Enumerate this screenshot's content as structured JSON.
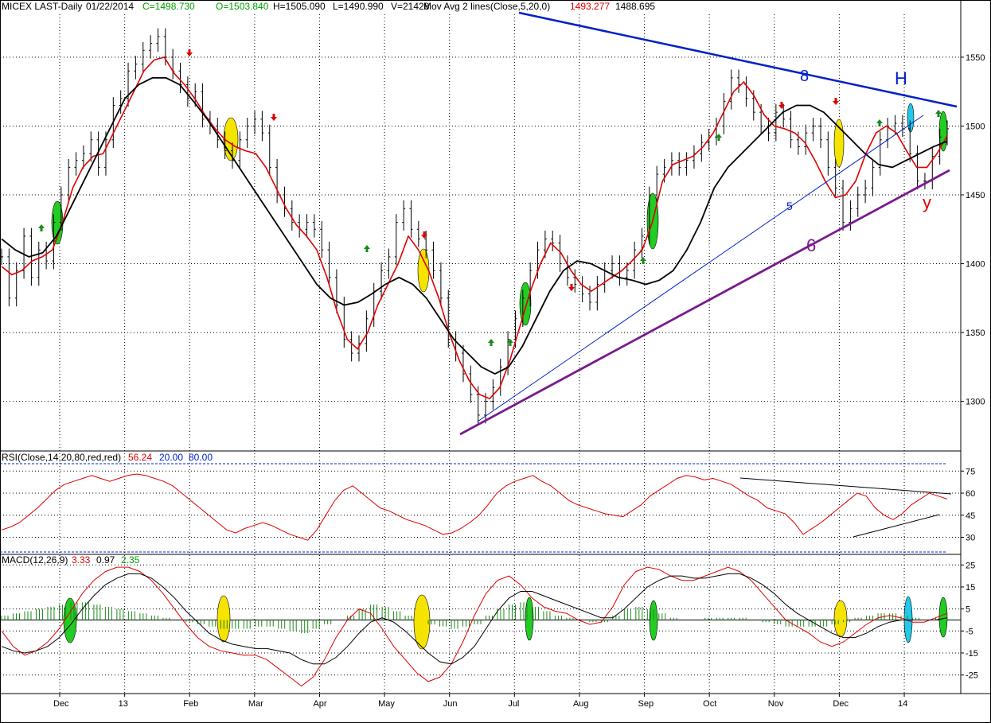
{
  "header": {
    "symbol": "MICEX LAST-Daily",
    "date": "01/22/2014",
    "close": "C=1498.730",
    "open": "O=1503.840",
    "high": "H=1505.090",
    "low": "L=1490.990",
    "volume": "V=21428",
    "ma_label": "Mov Avg 2 lines(Close,5,20,0)",
    "ma_fast": "1493.277",
    "ma_slow": "1488.695"
  },
  "rsi_header": {
    "label": "RSI(Close,14,20,80,red,red)",
    "value": "56.24",
    "low": "20.00",
    "high": "80.00"
  },
  "macd_header": {
    "label": "MACD(12,26,9)",
    "macd": "3.33",
    "signal": "0.97",
    "hist": "2.35"
  },
  "colors": {
    "fast_ma": "#e00000",
    "slow_ma": "#000000",
    "trend_top": "#0020c8",
    "trend_bottom": "#7a1a8c",
    "trend_mid": "#0020c8",
    "rsi": "#e00000",
    "macd_hist": "#1a8a1a",
    "up_arrow": "#1a8a1a",
    "down_arrow": "#e00000",
    "highlight_yellow": "#f5e400",
    "highlight_green": "#22cc22",
    "highlight_cyan": "#22c8e8"
  },
  "annotations": {
    "top_line": "8",
    "mid_line": "5",
    "bottom_line": "6",
    "h": "H",
    "y": "y"
  },
  "chart_data": [
    {
      "type": "line",
      "panel": "price",
      "x_labels": [
        "Dec",
        "13",
        "Feb",
        "Mar",
        "Apr",
        "May",
        "Jun",
        "Jul",
        "Aug",
        "Sep",
        "Oct",
        "Nov",
        "Dec",
        "14"
      ],
      "y_ticks": [
        1300,
        1350,
        1400,
        1450,
        1500,
        1550
      ],
      "ylim": [
        1268,
        1580
      ],
      "series": [
        {
          "name": "Close",
          "values": [
            1405,
            1375,
            1395,
            1420,
            1390,
            1410,
            1402,
            1430,
            1450,
            1470,
            1475,
            1480,
            1490,
            1470,
            1490,
            1515,
            1520,
            1540,
            1545,
            1555,
            1560,
            1565,
            1550,
            1540,
            1530,
            1520,
            1525,
            1505,
            1500,
            1490,
            1482,
            1475,
            1490,
            1500,
            1505,
            1495,
            1470,
            1450,
            1440,
            1430,
            1425,
            1430,
            1425,
            1410,
            1390,
            1370,
            1345,
            1335,
            1342,
            1360,
            1380,
            1395,
            1405,
            1430,
            1440,
            1425,
            1418,
            1410,
            1395,
            1375,
            1345,
            1335,
            1320,
            1305,
            1290,
            1300,
            1310,
            1325,
            1345,
            1360,
            1375,
            1395,
            1410,
            1418,
            1415,
            1400,
            1390,
            1385,
            1378,
            1372,
            1385,
            1395,
            1400,
            1390,
            1395,
            1410,
            1420,
            1450,
            1465,
            1470,
            1475,
            1470,
            1475,
            1480,
            1488,
            1492,
            1500,
            1518,
            1535,
            1530,
            1520,
            1510,
            1500,
            1495,
            1510,
            1505,
            1490,
            1485,
            1495,
            1500,
            1490,
            1470,
            1455,
            1430,
            1440,
            1450,
            1455,
            1470,
            1490,
            1500,
            1502,
            1498,
            1480,
            1460,
            1460,
            1478,
            1492,
            1498
          ]
        },
        {
          "name": "MA5",
          "values": [
            1398,
            1392,
            1395,
            1402,
            1405,
            1410,
            1430,
            1455,
            1470,
            1478,
            1480,
            1495,
            1510,
            1525,
            1540,
            1548,
            1550,
            1538,
            1530,
            1520,
            1508,
            1498,
            1490,
            1485,
            1482,
            1480,
            1470,
            1455,
            1440,
            1428,
            1420,
            1410,
            1390,
            1365,
            1345,
            1338,
            1350,
            1370,
            1385,
            1400,
            1420,
            1410,
            1395,
            1375,
            1350,
            1330,
            1315,
            1305,
            1302,
            1310,
            1330,
            1355,
            1380,
            1400,
            1415,
            1408,
            1395,
            1385,
            1380,
            1385,
            1390,
            1395,
            1402,
            1410,
            1430,
            1460,
            1472,
            1475,
            1478,
            1485,
            1495,
            1510,
            1525,
            1532,
            1522,
            1508,
            1500,
            1498,
            1495,
            1488,
            1475,
            1460,
            1448,
            1450,
            1460,
            1480,
            1495,
            1500,
            1495,
            1482,
            1470,
            1470,
            1480,
            1493
          ]
        },
        {
          "name": "MA20",
          "values": [
            1418,
            1410,
            1405,
            1408,
            1420,
            1440,
            1460,
            1480,
            1500,
            1520,
            1530,
            1535,
            1535,
            1530,
            1518,
            1505,
            1490,
            1475,
            1460,
            1445,
            1430,
            1415,
            1400,
            1385,
            1375,
            1370,
            1372,
            1378,
            1385,
            1390,
            1385,
            1375,
            1360,
            1345,
            1335,
            1325,
            1320,
            1325,
            1340,
            1360,
            1380,
            1395,
            1402,
            1400,
            1395,
            1390,
            1388,
            1385,
            1388,
            1395,
            1410,
            1430,
            1455,
            1470,
            1480,
            1490,
            1500,
            1510,
            1515,
            1515,
            1510,
            1500,
            1490,
            1480,
            1472,
            1470,
            1475,
            1480,
            1485,
            1489
          ]
        }
      ]
    },
    {
      "type": "line",
      "panel": "rsi",
      "y_ticks": [
        30,
        45,
        60,
        75
      ],
      "ylim": [
        20,
        80
      ],
      "series": [
        {
          "name": "RSI",
          "values": [
            35,
            37,
            40,
            45,
            50,
            56,
            62,
            66,
            68,
            70,
            72,
            70,
            68,
            70,
            72,
            73,
            72,
            70,
            68,
            65,
            60,
            55,
            50,
            45,
            40,
            35,
            33,
            36,
            38,
            40,
            38,
            35,
            32,
            30,
            28,
            35,
            45,
            55,
            62,
            65,
            60,
            55,
            50,
            48,
            45,
            42,
            40,
            38,
            35,
            32,
            33,
            36,
            40,
            45,
            52,
            60,
            65,
            68,
            70,
            72,
            68,
            65,
            60,
            55,
            52,
            50,
            48,
            46,
            45,
            44,
            48,
            52,
            58,
            62,
            66,
            70,
            72,
            71,
            69,
            70,
            68,
            66,
            62,
            58,
            55,
            50,
            48,
            46,
            40,
            32,
            36,
            40,
            45,
            50,
            55,
            60,
            58,
            50,
            45,
            42,
            46,
            52,
            56,
            60,
            58,
            56
          ]
        }
      ]
    },
    {
      "type": "line",
      "panel": "macd",
      "y_ticks": [
        -25,
        -15,
        -5,
        5,
        15,
        25
      ],
      "ylim": [
        -32,
        28
      ],
      "series": [
        {
          "name": "MACD",
          "values": [
            -5,
            -12,
            -16,
            -14,
            -10,
            -4,
            4,
            12,
            18,
            22,
            24,
            24,
            22,
            18,
            12,
            5,
            -2,
            -8,
            -12,
            -14,
            -15,
            -16,
            -16,
            -18,
            -22,
            -26,
            -30,
            -26,
            -18,
            -8,
            0,
            5,
            3,
            -4,
            -12,
            -18,
            -24,
            -28,
            -26,
            -20,
            -10,
            2,
            12,
            18,
            20,
            16,
            10,
            6,
            4,
            3,
            0,
            -2,
            -1,
            6,
            16,
            22,
            24,
            23,
            20,
            18,
            18,
            20,
            22,
            24,
            22,
            18,
            12,
            6,
            0,
            -3,
            -6,
            -10,
            -12,
            -10,
            -6,
            -2,
            1,
            2,
            1,
            -1,
            -1,
            1,
            3
          ]
        },
        {
          "name": "Signal",
          "values": [
            -12,
            -14,
            -15,
            -14,
            -12,
            -8,
            -2,
            5,
            11,
            16,
            19,
            21,
            21,
            19,
            15,
            10,
            4,
            -1,
            -6,
            -9,
            -11,
            -12,
            -13,
            -13,
            -14,
            -15,
            -18,
            -20,
            -20,
            -17,
            -12,
            -6,
            -1,
            1,
            -1,
            -5,
            -10,
            -15,
            -19,
            -20,
            -17,
            -12,
            -4,
            4,
            10,
            13,
            13,
            11,
            9,
            7,
            5,
            3,
            1,
            1,
            5,
            10,
            15,
            18,
            20,
            20,
            19,
            19,
            20,
            21,
            21,
            19,
            16,
            12,
            7,
            3,
            0,
            -3,
            -6,
            -8,
            -8,
            -6,
            -3,
            -1,
            0,
            0,
            0,
            0,
            1
          ]
        },
        {
          "name": "Histogram",
          "values": [
            2,
            3,
            4,
            5,
            6,
            7,
            8,
            8,
            7,
            6,
            5,
            4,
            3,
            2,
            1,
            0,
            -1,
            -2,
            -3,
            -4,
            -4,
            -4,
            -3,
            -3,
            -4,
            -5,
            -6,
            -4,
            -2,
            0,
            2,
            5,
            7,
            6,
            4,
            2,
            0,
            -2,
            -3,
            -4,
            -3,
            -2,
            2,
            5,
            7,
            8,
            6,
            4,
            2,
            1,
            0,
            -1,
            -1,
            2,
            5,
            6,
            5,
            3,
            1,
            0,
            0,
            1,
            1,
            1,
            1,
            0,
            -1,
            -2,
            -3,
            -3,
            -3,
            -3,
            -2,
            -1,
            1,
            2,
            3,
            3,
            2,
            1,
            0,
            1,
            2
          ]
        }
      ]
    }
  ]
}
